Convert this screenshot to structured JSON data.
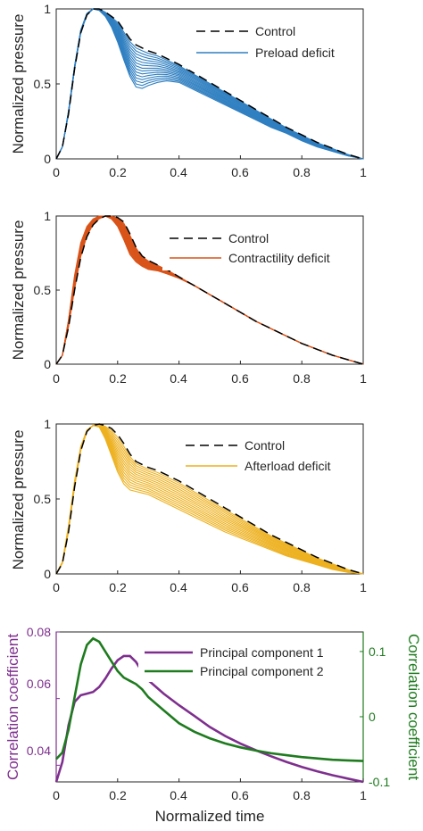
{
  "figure": {
    "panels": [
      {
        "ylabel": "Normalized pressure",
        "legend": [
          "Control",
          "Preload deficit"
        ],
        "color": "#2f7fc1",
        "xticks": [
          "0",
          "0.2",
          "0.4",
          "0.6",
          "0.8",
          "1"
        ],
        "yticks": [
          "0",
          "0.5",
          "1"
        ]
      },
      {
        "ylabel": "Normalized pressure",
        "legend": [
          "Control",
          "Contractility deficit"
        ],
        "color": "#d9541a",
        "xticks": [
          "0",
          "0.2",
          "0.4",
          "0.6",
          "0.8",
          "1"
        ],
        "yticks": [
          "0",
          "0.5",
          "1"
        ]
      },
      {
        "ylabel": "Normalized pressure",
        "legend": [
          "Control",
          "Afterload deficit"
        ],
        "color": "#edb120",
        "xticks": [
          "0",
          "0.2",
          "0.4",
          "0.6",
          "0.8",
          "1"
        ],
        "yticks": [
          "0",
          "0.5",
          "1"
        ]
      },
      {
        "ylabel_left": "Correlation coefficient",
        "ylabel_right": "Correlation coefficient",
        "xlabel": "Normalized time",
        "legend": [
          "Principal component 1",
          "Principal component 2"
        ],
        "colors": [
          "#7e2f8e",
          "#1e7b1e"
        ],
        "xticks": [
          "0",
          "0.2",
          "0.4",
          "0.6",
          "0.8",
          "1"
        ],
        "yticks_left": [
          "0.04",
          "0.06",
          "0.08"
        ],
        "yticks_right": [
          "-0.1",
          "0",
          "0.1"
        ]
      }
    ]
  },
  "chart_data": [
    {
      "type": "line",
      "xlim": [
        0,
        1
      ],
      "ylim": [
        0,
        1
      ],
      "series": [
        {
          "name": "Control",
          "style": "dashed",
          "x": [
            0,
            0.02,
            0.04,
            0.06,
            0.08,
            0.1,
            0.12,
            0.14,
            0.16,
            0.18,
            0.2,
            0.22,
            0.24,
            0.26,
            0.28,
            0.3,
            0.33,
            0.36,
            0.4,
            0.45,
            0.5,
            0.55,
            0.6,
            0.65,
            0.7,
            0.75,
            0.8,
            0.85,
            0.9,
            0.95,
            1.0
          ],
          "y": [
            0,
            0.08,
            0.3,
            0.6,
            0.84,
            0.96,
            1.0,
            1.0,
            0.98,
            0.95,
            0.92,
            0.86,
            0.8,
            0.76,
            0.74,
            0.72,
            0.7,
            0.67,
            0.63,
            0.57,
            0.51,
            0.45,
            0.39,
            0.33,
            0.27,
            0.21,
            0.16,
            0.11,
            0.07,
            0.03,
            0.0
          ]
        },
        {
          "name": "Preload deficit",
          "x": [
            0,
            0.02,
            0.04,
            0.06,
            0.08,
            0.1,
            0.12,
            0.14,
            0.16,
            0.18,
            0.2,
            0.22,
            0.24,
            0.26,
            0.28,
            0.3,
            0.33,
            0.36,
            0.4,
            0.45,
            0.5,
            0.55,
            0.6,
            0.65,
            0.7,
            0.75,
            0.8,
            0.85,
            0.9,
            0.95,
            1.0
          ],
          "y": [
            0,
            0.08,
            0.32,
            0.62,
            0.86,
            0.97,
            1.0,
            0.99,
            0.95,
            0.88,
            0.78,
            0.66,
            0.55,
            0.48,
            0.47,
            0.49,
            0.51,
            0.52,
            0.51,
            0.46,
            0.41,
            0.36,
            0.31,
            0.26,
            0.21,
            0.17,
            0.12,
            0.08,
            0.05,
            0.02,
            0.0
          ]
        }
      ]
    },
    {
      "type": "line",
      "xlim": [
        0,
        1
      ],
      "ylim": [
        0,
        1
      ],
      "series": [
        {
          "name": "Control",
          "style": "dashed",
          "x": [
            0,
            0.02,
            0.04,
            0.06,
            0.08,
            0.1,
            0.12,
            0.14,
            0.16,
            0.18,
            0.2,
            0.22,
            0.24,
            0.26,
            0.28,
            0.3,
            0.33,
            0.36,
            0.4,
            0.45,
            0.5,
            0.55,
            0.6,
            0.65,
            0.7,
            0.75,
            0.8,
            0.85,
            0.9,
            0.95,
            1.0
          ],
          "y": [
            0,
            0.06,
            0.25,
            0.5,
            0.72,
            0.86,
            0.94,
            0.98,
            1.0,
            1.0,
            0.99,
            0.96,
            0.88,
            0.79,
            0.73,
            0.7,
            0.67,
            0.64,
            0.59,
            0.53,
            0.47,
            0.41,
            0.35,
            0.29,
            0.24,
            0.19,
            0.14,
            0.1,
            0.06,
            0.03,
            0.0
          ]
        },
        {
          "name": "Contractility deficit",
          "x": [
            0,
            0.02,
            0.04,
            0.06,
            0.08,
            0.1,
            0.12,
            0.14,
            0.16,
            0.18,
            0.2,
            0.22,
            0.24,
            0.26,
            0.28,
            0.3,
            0.33,
            0.36,
            0.4,
            0.45,
            0.5,
            0.55,
            0.6,
            0.65,
            0.7,
            0.75,
            0.8,
            0.85,
            0.9,
            0.95,
            1.0
          ],
          "y": [
            0,
            0.06,
            0.3,
            0.6,
            0.82,
            0.93,
            0.98,
            1.0,
            1.0,
            0.98,
            0.93,
            0.84,
            0.74,
            0.69,
            0.66,
            0.64,
            0.63,
            0.61,
            0.58,
            0.53,
            0.47,
            0.41,
            0.35,
            0.29,
            0.24,
            0.19,
            0.14,
            0.1,
            0.06,
            0.03,
            0.0
          ]
        }
      ]
    },
    {
      "type": "line",
      "xlim": [
        0,
        1
      ],
      "ylim": [
        0,
        1
      ],
      "series": [
        {
          "name": "Control",
          "style": "dashed",
          "x": [
            0,
            0.02,
            0.04,
            0.06,
            0.08,
            0.1,
            0.12,
            0.14,
            0.16,
            0.18,
            0.2,
            0.22,
            0.24,
            0.26,
            0.28,
            0.3,
            0.33,
            0.36,
            0.4,
            0.45,
            0.5,
            0.55,
            0.6,
            0.65,
            0.7,
            0.75,
            0.8,
            0.85,
            0.9,
            0.95,
            1.0
          ],
          "y": [
            0,
            0.07,
            0.28,
            0.58,
            0.82,
            0.95,
            0.99,
            1.0,
            0.99,
            0.97,
            0.93,
            0.87,
            0.8,
            0.75,
            0.73,
            0.71,
            0.69,
            0.66,
            0.62,
            0.56,
            0.5,
            0.44,
            0.38,
            0.32,
            0.26,
            0.21,
            0.16,
            0.11,
            0.07,
            0.03,
            0.0
          ]
        },
        {
          "name": "Afterload deficit",
          "x": [
            0,
            0.02,
            0.04,
            0.06,
            0.08,
            0.1,
            0.12,
            0.14,
            0.16,
            0.18,
            0.2,
            0.22,
            0.24,
            0.26,
            0.28,
            0.3,
            0.33,
            0.36,
            0.4,
            0.45,
            0.5,
            0.55,
            0.6,
            0.65,
            0.7,
            0.75,
            0.8,
            0.85,
            0.9,
            0.95,
            1.0
          ],
          "y": [
            0,
            0.08,
            0.32,
            0.62,
            0.85,
            0.96,
            0.99,
            0.98,
            0.9,
            0.79,
            0.68,
            0.6,
            0.56,
            0.55,
            0.54,
            0.53,
            0.5,
            0.47,
            0.43,
            0.38,
            0.33,
            0.28,
            0.24,
            0.2,
            0.16,
            0.12,
            0.09,
            0.06,
            0.03,
            0.01,
            0.0
          ]
        }
      ]
    },
    {
      "type": "line",
      "xlim": [
        0,
        1
      ],
      "ylim_left": [
        0.035,
        0.08
      ],
      "ylim_right": [
        -0.1,
        0.13
      ],
      "series": [
        {
          "name": "Principal component 1",
          "axis": "left",
          "x": [
            0,
            0.02,
            0.04,
            0.06,
            0.08,
            0.1,
            0.12,
            0.14,
            0.16,
            0.18,
            0.2,
            0.22,
            0.24,
            0.26,
            0.28,
            0.3,
            0.35,
            0.4,
            0.45,
            0.5,
            0.55,
            0.6,
            0.65,
            0.7,
            0.75,
            0.8,
            0.85,
            0.9,
            0.95,
            1.0
          ],
          "y": [
            0.035,
            0.041,
            0.052,
            0.059,
            0.061,
            0.0615,
            0.062,
            0.0635,
            0.066,
            0.069,
            0.0715,
            0.0728,
            0.0728,
            0.071,
            0.068,
            0.0655,
            0.0615,
            0.058,
            0.0548,
            0.0515,
            0.0488,
            0.0465,
            0.0445,
            0.0427,
            0.041,
            0.0395,
            0.0382,
            0.037,
            0.036,
            0.035
          ]
        },
        {
          "name": "Principal component 2",
          "axis": "right",
          "x": [
            0,
            0.02,
            0.04,
            0.06,
            0.08,
            0.1,
            0.12,
            0.14,
            0.16,
            0.18,
            0.2,
            0.22,
            0.24,
            0.26,
            0.28,
            0.3,
            0.35,
            0.4,
            0.45,
            0.5,
            0.55,
            0.6,
            0.65,
            0.7,
            0.75,
            0.8,
            0.85,
            0.9,
            0.95,
            1.0
          ],
          "y": [
            -0.065,
            -0.055,
            -0.02,
            0.03,
            0.08,
            0.11,
            0.12,
            0.115,
            0.1,
            0.085,
            0.07,
            0.06,
            0.055,
            0.05,
            0.042,
            0.03,
            0.01,
            -0.01,
            -0.023,
            -0.033,
            -0.041,
            -0.047,
            -0.052,
            -0.056,
            -0.059,
            -0.062,
            -0.064,
            -0.066,
            -0.067,
            -0.068
          ]
        }
      ]
    }
  ]
}
